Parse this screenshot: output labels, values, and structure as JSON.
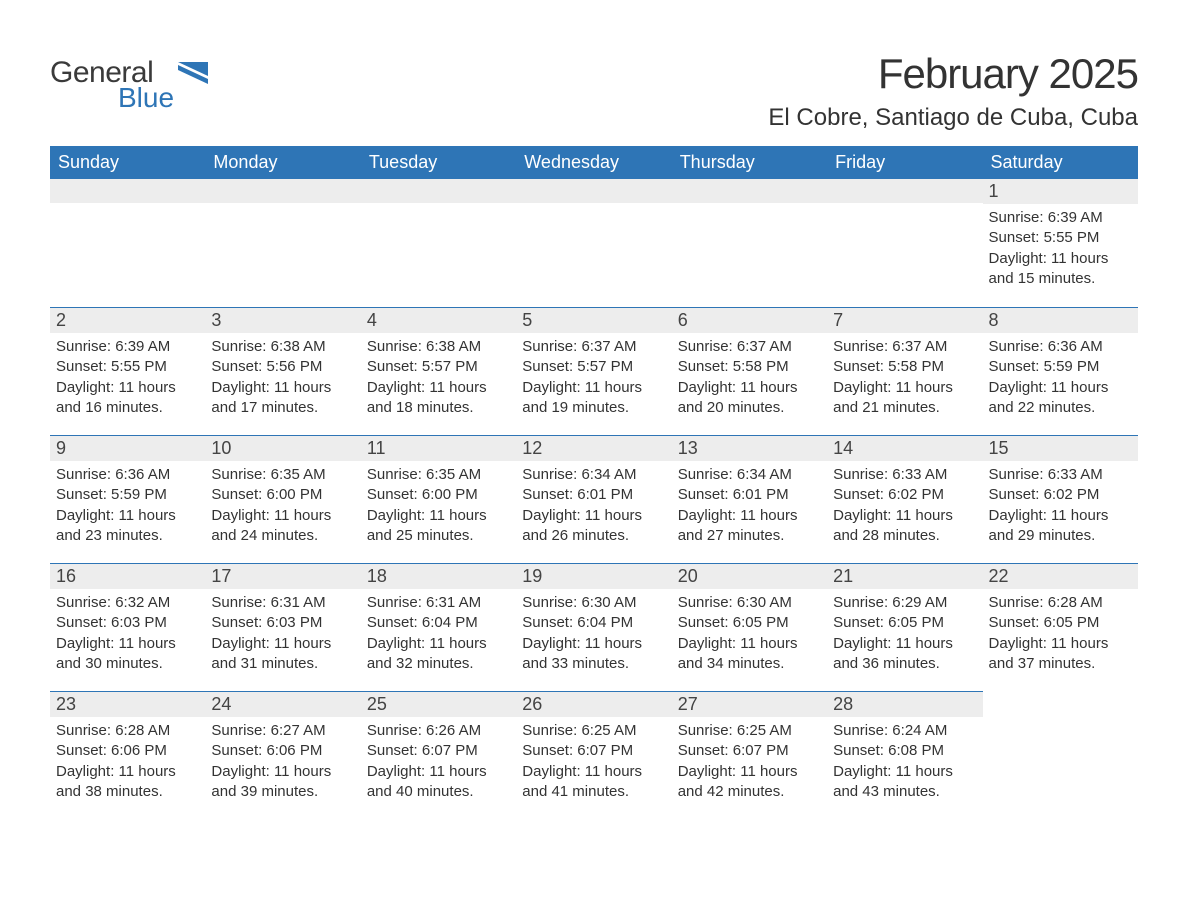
{
  "logo": {
    "text_general": "General",
    "text_blue": "Blue"
  },
  "title": {
    "month": "February 2025",
    "location": "El Cobre, Santiago de Cuba, Cuba",
    "title_fontsize": 42,
    "subtitle_fontsize": 24,
    "text_color": "#333333"
  },
  "calendar": {
    "type": "table",
    "header_bg": "#2e75b6",
    "header_text_color": "#ffffff",
    "daynum_bg": "#ededed",
    "daynum_border_color": "#2e75b6",
    "body_bg": "#ffffff",
    "body_text_color": "#333333",
    "body_fontsize": 15,
    "columns": [
      "Sunday",
      "Monday",
      "Tuesday",
      "Wednesday",
      "Thursday",
      "Friday",
      "Saturday"
    ],
    "first_weekday_index": 6,
    "days": [
      {
        "n": 1,
        "sunrise": "6:39 AM",
        "sunset": "5:55 PM",
        "daylight": "11 hours and 15 minutes."
      },
      {
        "n": 2,
        "sunrise": "6:39 AM",
        "sunset": "5:55 PM",
        "daylight": "11 hours and 16 minutes."
      },
      {
        "n": 3,
        "sunrise": "6:38 AM",
        "sunset": "5:56 PM",
        "daylight": "11 hours and 17 minutes."
      },
      {
        "n": 4,
        "sunrise": "6:38 AM",
        "sunset": "5:57 PM",
        "daylight": "11 hours and 18 minutes."
      },
      {
        "n": 5,
        "sunrise": "6:37 AM",
        "sunset": "5:57 PM",
        "daylight": "11 hours and 19 minutes."
      },
      {
        "n": 6,
        "sunrise": "6:37 AM",
        "sunset": "5:58 PM",
        "daylight": "11 hours and 20 minutes."
      },
      {
        "n": 7,
        "sunrise": "6:37 AM",
        "sunset": "5:58 PM",
        "daylight": "11 hours and 21 minutes."
      },
      {
        "n": 8,
        "sunrise": "6:36 AM",
        "sunset": "5:59 PM",
        "daylight": "11 hours and 22 minutes."
      },
      {
        "n": 9,
        "sunrise": "6:36 AM",
        "sunset": "5:59 PM",
        "daylight": "11 hours and 23 minutes."
      },
      {
        "n": 10,
        "sunrise": "6:35 AM",
        "sunset": "6:00 PM",
        "daylight": "11 hours and 24 minutes."
      },
      {
        "n": 11,
        "sunrise": "6:35 AM",
        "sunset": "6:00 PM",
        "daylight": "11 hours and 25 minutes."
      },
      {
        "n": 12,
        "sunrise": "6:34 AM",
        "sunset": "6:01 PM",
        "daylight": "11 hours and 26 minutes."
      },
      {
        "n": 13,
        "sunrise": "6:34 AM",
        "sunset": "6:01 PM",
        "daylight": "11 hours and 27 minutes."
      },
      {
        "n": 14,
        "sunrise": "6:33 AM",
        "sunset": "6:02 PM",
        "daylight": "11 hours and 28 minutes."
      },
      {
        "n": 15,
        "sunrise": "6:33 AM",
        "sunset": "6:02 PM",
        "daylight": "11 hours and 29 minutes."
      },
      {
        "n": 16,
        "sunrise": "6:32 AM",
        "sunset": "6:03 PM",
        "daylight": "11 hours and 30 minutes."
      },
      {
        "n": 17,
        "sunrise": "6:31 AM",
        "sunset": "6:03 PM",
        "daylight": "11 hours and 31 minutes."
      },
      {
        "n": 18,
        "sunrise": "6:31 AM",
        "sunset": "6:04 PM",
        "daylight": "11 hours and 32 minutes."
      },
      {
        "n": 19,
        "sunrise": "6:30 AM",
        "sunset": "6:04 PM",
        "daylight": "11 hours and 33 minutes."
      },
      {
        "n": 20,
        "sunrise": "6:30 AM",
        "sunset": "6:05 PM",
        "daylight": "11 hours and 34 minutes."
      },
      {
        "n": 21,
        "sunrise": "6:29 AM",
        "sunset": "6:05 PM",
        "daylight": "11 hours and 36 minutes."
      },
      {
        "n": 22,
        "sunrise": "6:28 AM",
        "sunset": "6:05 PM",
        "daylight": "11 hours and 37 minutes."
      },
      {
        "n": 23,
        "sunrise": "6:28 AM",
        "sunset": "6:06 PM",
        "daylight": "11 hours and 38 minutes."
      },
      {
        "n": 24,
        "sunrise": "6:27 AM",
        "sunset": "6:06 PM",
        "daylight": "11 hours and 39 minutes."
      },
      {
        "n": 25,
        "sunrise": "6:26 AM",
        "sunset": "6:07 PM",
        "daylight": "11 hours and 40 minutes."
      },
      {
        "n": 26,
        "sunrise": "6:25 AM",
        "sunset": "6:07 PM",
        "daylight": "11 hours and 41 minutes."
      },
      {
        "n": 27,
        "sunrise": "6:25 AM",
        "sunset": "6:07 PM",
        "daylight": "11 hours and 42 minutes."
      },
      {
        "n": 28,
        "sunrise": "6:24 AM",
        "sunset": "6:08 PM",
        "daylight": "11 hours and 43 minutes."
      }
    ],
    "labels": {
      "sunrise": "Sunrise:",
      "sunset": "Sunset:",
      "daylight": "Daylight:"
    }
  }
}
